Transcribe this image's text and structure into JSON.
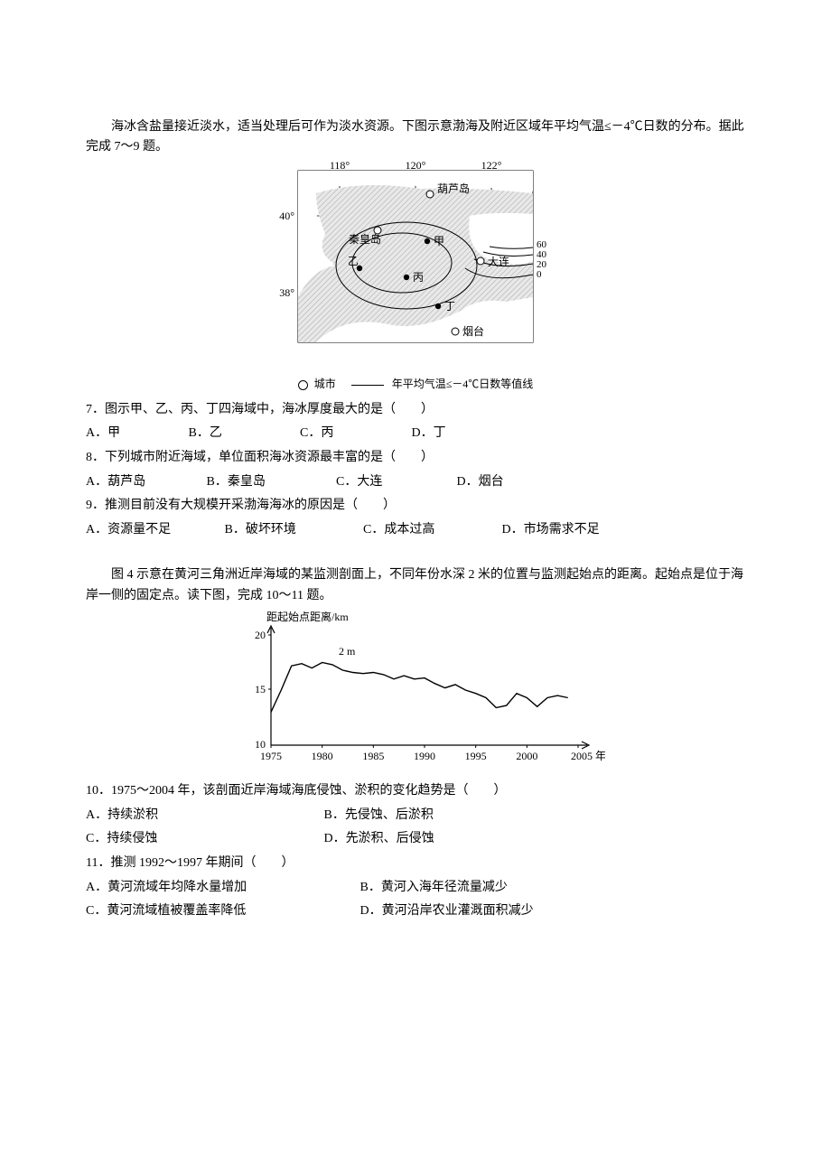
{
  "block1": {
    "intro": "海冰含盐量接近淡水，适当处理后可作为淡水资源。下图示意渤海及附近区域年平均气温≤－4℃日数的分布。据此完成 7～9 题。",
    "map": {
      "lons": [
        "118°",
        "120°",
        "122°"
      ],
      "lats": [
        "40°",
        "38°"
      ],
      "cities": {
        "huludao": "葫芦岛",
        "qinhuangdao": "秦皇岛",
        "dalian": "大连",
        "yantai": "烟台"
      },
      "points": {
        "jia": "甲",
        "yi": "乙",
        "bing": "丙",
        "ding": "丁"
      },
      "contours": [
        "60",
        "40",
        "20",
        "0"
      ],
      "legend_city": "城市",
      "legend_line": "年平均气温≤－4℃日数等值线"
    },
    "q7": {
      "stem": "7．图示甲、乙、丙、丁四海域中，海冰厚度最大的是（　　）",
      "opts": {
        "A": "A．甲",
        "B": "B．乙",
        "C": "C．丙",
        "D": "D．丁"
      }
    },
    "q8": {
      "stem": "8．下列城市附近海域，单位面积海冰资源最丰富的是（　　）",
      "opts": {
        "A": "A．葫芦岛",
        "B": "B．秦皇岛",
        "C": "C．大连",
        "D": "D．烟台"
      }
    },
    "q9": {
      "stem": "9．推测目前没有大规模开采渤海海冰的原因是（　　）",
      "opts": {
        "A": "A．资源量不足",
        "B": "B．破坏环境",
        "C": "C．成本过高",
        "D": "D．市场需求不足"
      }
    }
  },
  "block2": {
    "intro": "图 4 示意在黄河三角洲近岸海域的某监测剖面上，不同年份水深 2 米的位置与监测起始点的距离。起始点是位于海岸一侧的固定点。读下图，完成 10～11 题。",
    "chart": {
      "ylabel": "距起始点距离/km",
      "yticks": [
        "10",
        "15",
        "20"
      ],
      "xticks": [
        "1975",
        "1980",
        "1985",
        "1990",
        "1995",
        "2000",
        "2005 年"
      ],
      "series_label": "2 m",
      "ylim": [
        10,
        20
      ],
      "line_color": "#000000",
      "background": "#ffffff",
      "data_approx": [
        [
          1975,
          13.0
        ],
        [
          1976,
          15.0
        ],
        [
          1977,
          17.2
        ],
        [
          1978,
          17.4
        ],
        [
          1979,
          17.0
        ],
        [
          1980,
          17.5
        ],
        [
          1981,
          17.3
        ],
        [
          1982,
          16.8
        ],
        [
          1983,
          16.6
        ],
        [
          1984,
          16.5
        ],
        [
          1985,
          16.6
        ],
        [
          1986,
          16.4
        ],
        [
          1987,
          16.0
        ],
        [
          1988,
          16.3
        ],
        [
          1989,
          16.0
        ],
        [
          1990,
          16.1
        ],
        [
          1991,
          15.6
        ],
        [
          1992,
          15.2
        ],
        [
          1993,
          15.5
        ],
        [
          1994,
          15.0
        ],
        [
          1995,
          14.7
        ],
        [
          1996,
          14.3
        ],
        [
          1997,
          13.4
        ],
        [
          1998,
          13.6
        ],
        [
          1999,
          14.7
        ],
        [
          2000,
          14.3
        ],
        [
          2001,
          13.5
        ],
        [
          2002,
          14.3
        ],
        [
          2003,
          14.5
        ],
        [
          2004,
          14.3
        ]
      ]
    },
    "q10": {
      "stem": "10．1975～2004 年，该剖面近岸海域海底侵蚀、淤积的变化趋势是（　　）",
      "opts": {
        "A": "A．持续淤积",
        "B": "B．先侵蚀、后淤积",
        "C": "C．持续侵蚀",
        "D": "D．先淤积、后侵蚀"
      }
    },
    "q11": {
      "stem": "11．推测 1992～1997 年期间（　　）",
      "opts": {
        "A": "A．黄河流域年均降水量增加",
        "B": "B．黄河入海年径流量减少",
        "C": "C．黄河流域植被覆盖率降低",
        "D": "D．黄河沿岸农业灌溉面积减少"
      }
    }
  }
}
